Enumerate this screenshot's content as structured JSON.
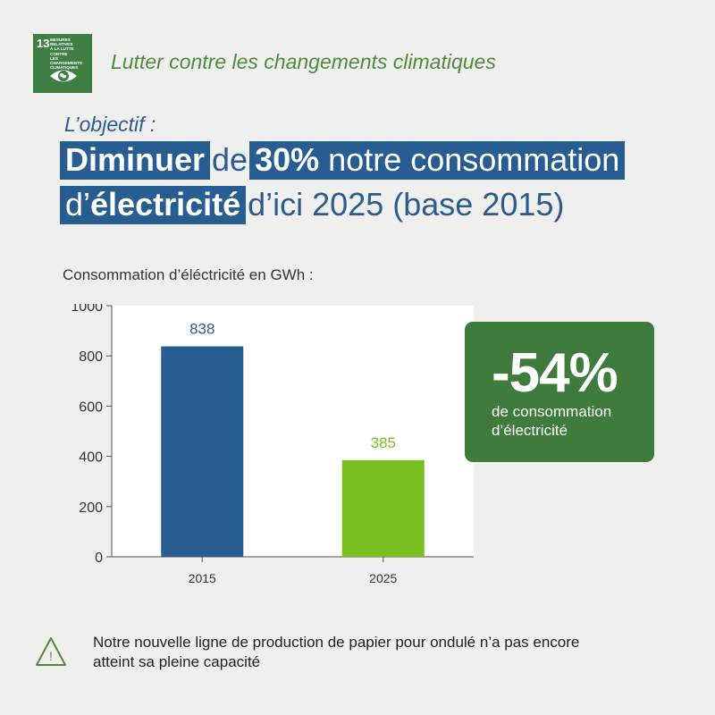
{
  "header": {
    "badge": {
      "number": "13",
      "label_line1": "MESURES RELATIVES",
      "label_line2": "À LA LUTTE CONTRE",
      "label_line3": "LES CHANGEMENTS",
      "label_line4": "CLIMATIQUES",
      "icon": "eye-globe-icon"
    },
    "subtitle": "Lutter contre les changements climatiques"
  },
  "objective": {
    "label": "L’objectif :",
    "line1": {
      "bold1": "Diminuer",
      "plain1": "de",
      "bold2": "30%",
      "plain2": "notre consommation"
    },
    "line2": {
      "plain1": "d’",
      "bold1": "électricité",
      "plain2": "d’ici 2025 (base 2015)"
    }
  },
  "chart_caption": "Consommation d’éléctricité en GWh :",
  "chart_data": {
    "type": "bar",
    "categories": [
      "2015",
      "2025"
    ],
    "values": [
      838,
      385
    ],
    "colors": [
      "#285d91",
      "#78be20"
    ],
    "label_colors": [
      "#2c5c8f",
      "#78be20"
    ],
    "title": "",
    "xlabel": "",
    "ylabel": "",
    "ylim": [
      0,
      1000
    ],
    "yticks": [
      0,
      200,
      400,
      600,
      800,
      1000
    ],
    "grid": false
  },
  "kpi": {
    "value": "-54%",
    "desc_line1": "de consommation",
    "desc_line2": "d’électricité"
  },
  "note": {
    "icon": "warning-icon",
    "text_line1": "Notre nouvelle ligne de production de papier pour ondulé n’a pas encore",
    "text_line2": "atteint sa pleine capacité"
  }
}
